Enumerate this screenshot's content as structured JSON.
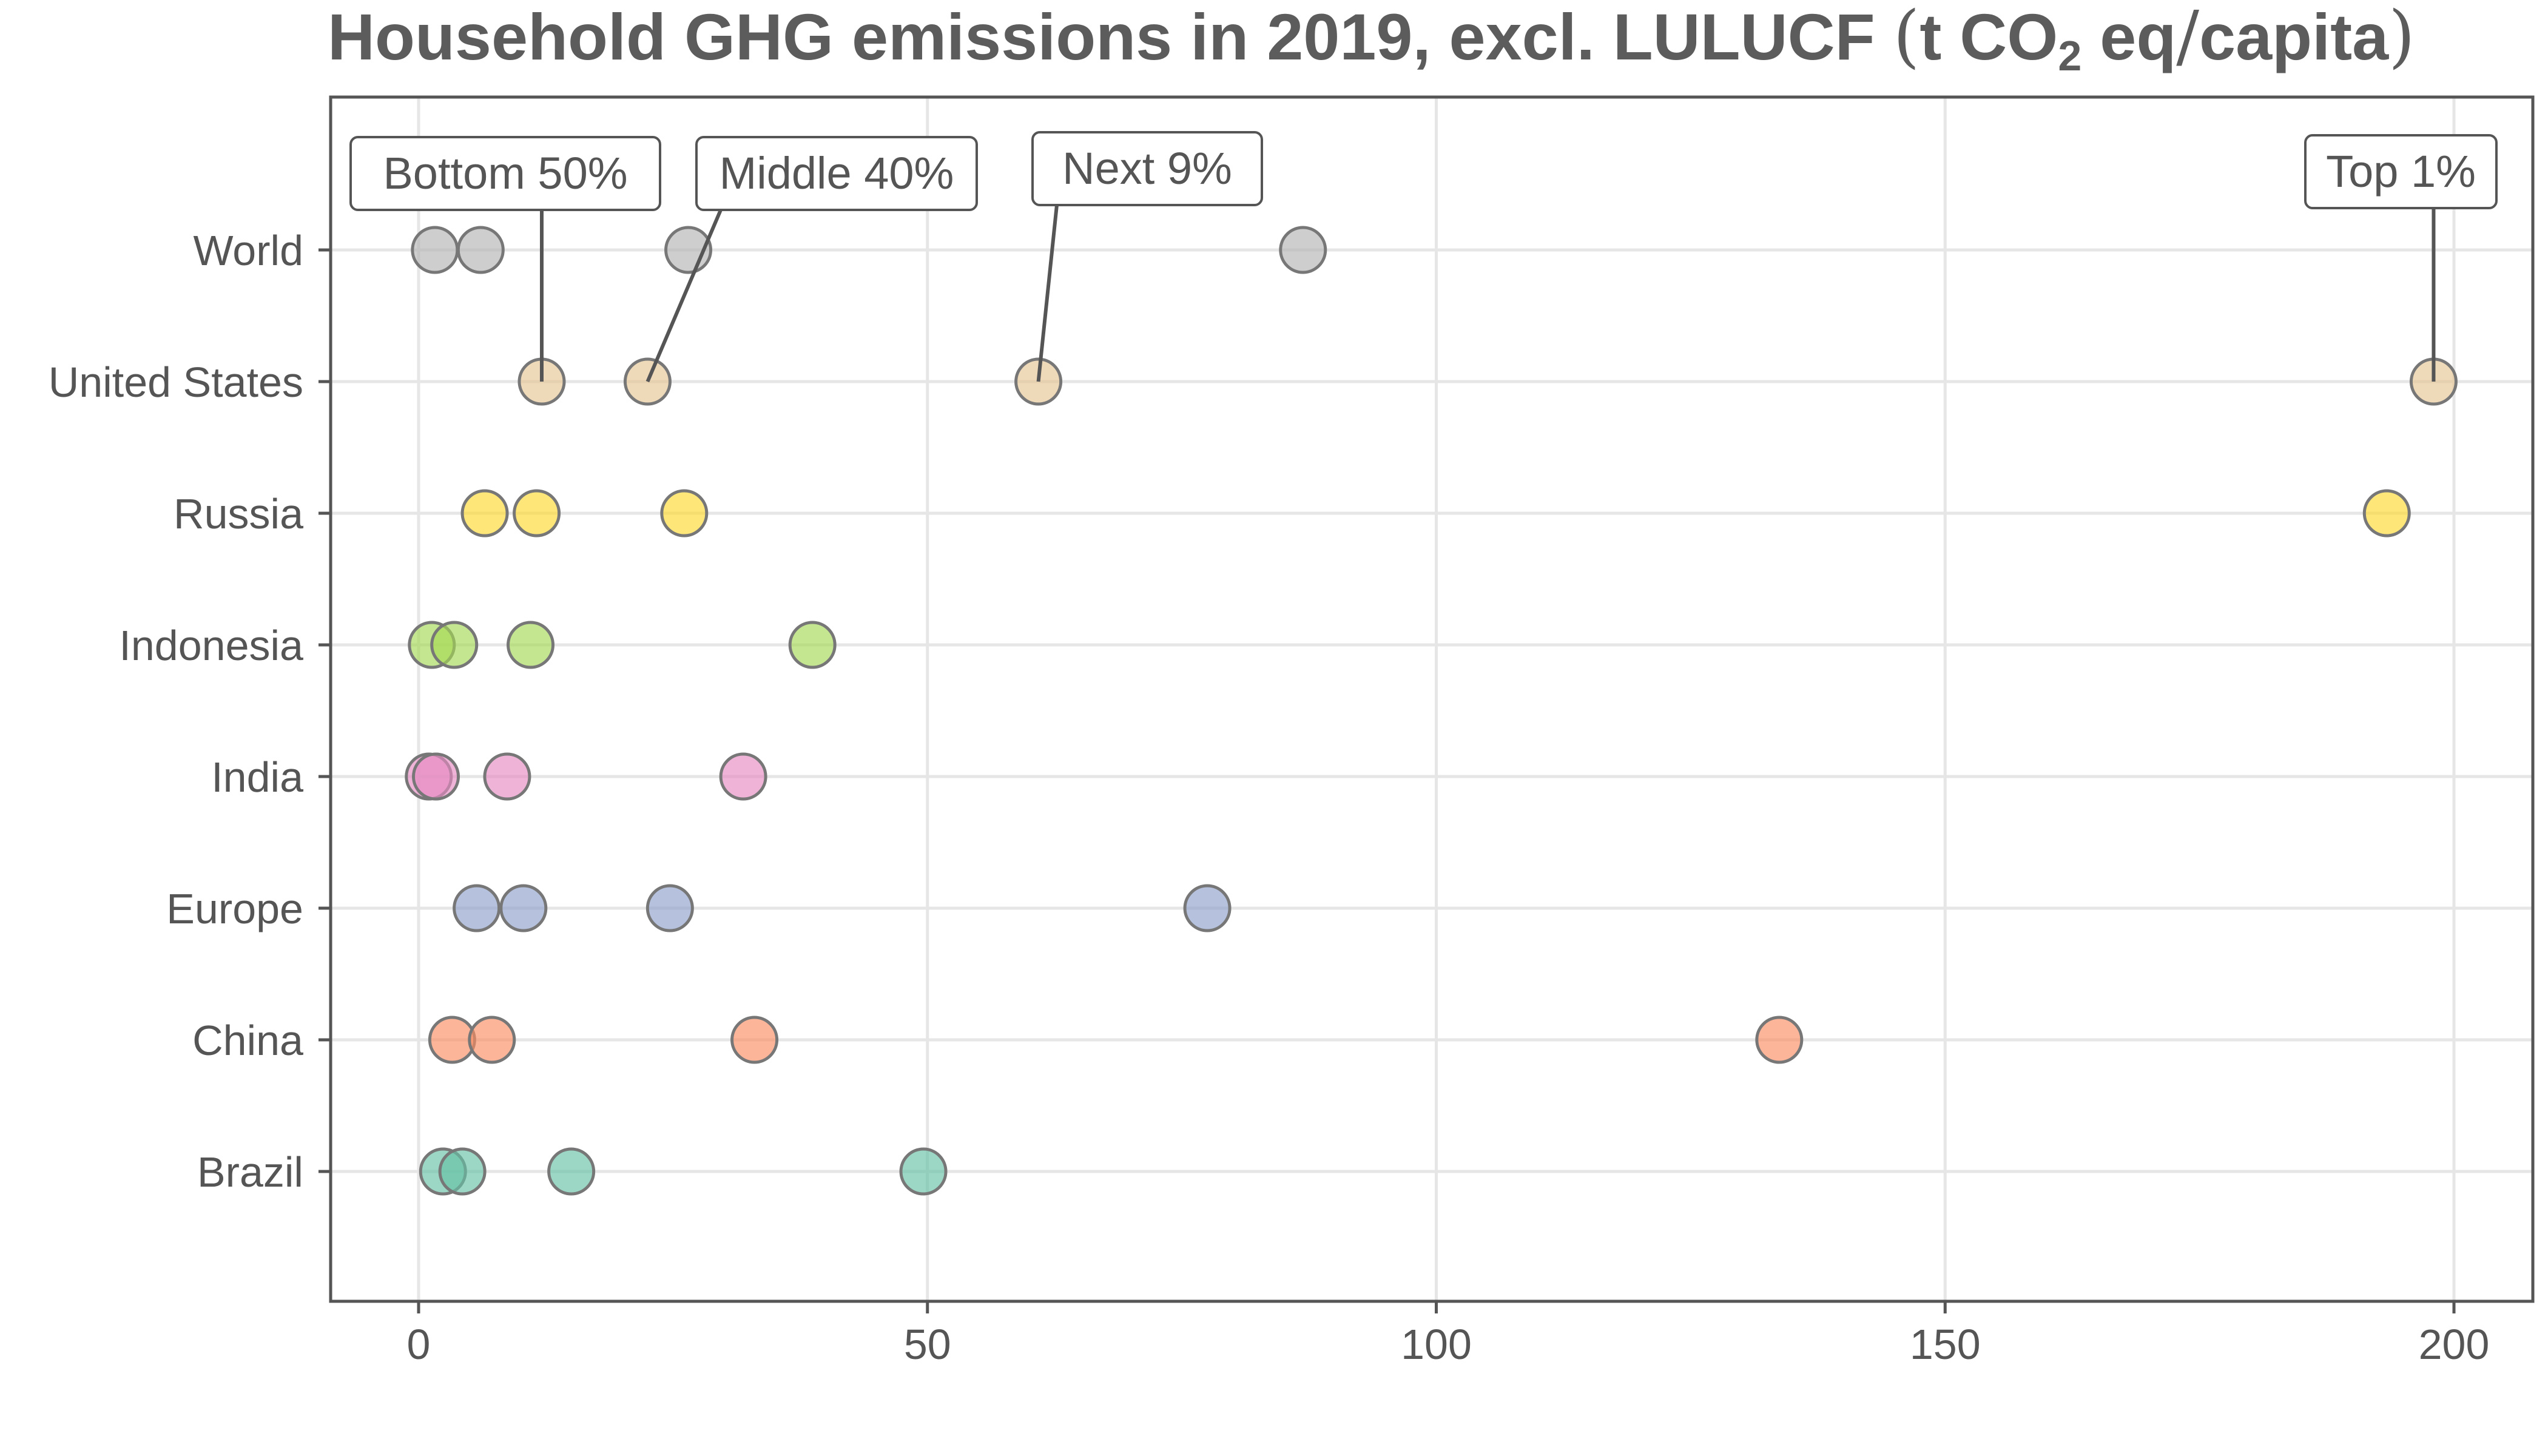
{
  "chart_data": {
    "type": "scatter",
    "title_parts": {
      "main": "Household GHG emissions in 2019, excl. LULUCF",
      "open_paren": "(",
      "unit_pre": "t CO",
      "unit_sub": "2",
      "unit_mid": " eq",
      "slash": "/",
      "unit_post": "capita",
      "close_paren": ")"
    },
    "xlim": [
      -9,
      209
    ],
    "x_ticks": [
      0,
      50,
      100,
      150,
      200
    ],
    "categories": [
      "World",
      "United States",
      "Russia",
      "Indonesia",
      "India",
      "Europe",
      "China",
      "Brazil"
    ],
    "groups": [
      "Bottom 50%",
      "Middle 40%",
      "Next 9%",
      "Top 1%"
    ],
    "grid": true,
    "colors": {
      "World": "#b3b3b3",
      "United States": "#e5c494",
      "Russia": "#ffd92f",
      "Indonesia": "#a6d854",
      "India": "#e78ac3",
      "Europe": "#8da0cb",
      "China": "#fc8d62",
      "Brazil": "#66c2a5"
    },
    "series": [
      {
        "category": "World",
        "values": [
          1.6,
          6.1,
          26.5,
          86.9
        ]
      },
      {
        "category": "United States",
        "values": [
          12.1,
          22.5,
          60.9,
          198.0
        ]
      },
      {
        "category": "Russia",
        "values": [
          6.5,
          11.6,
          26.1,
          193.4
        ]
      },
      {
        "category": "Indonesia",
        "values": [
          1.3,
          3.5,
          11.0,
          38.7
        ]
      },
      {
        "category": "India",
        "values": [
          1.0,
          1.7,
          8.7,
          31.9
        ]
      },
      {
        "category": "Europe",
        "values": [
          5.7,
          10.3,
          24.7,
          77.5
        ]
      },
      {
        "category": "China",
        "values": [
          3.3,
          7.2,
          33.0,
          133.7
        ]
      },
      {
        "category": "Brazil",
        "values": [
          2.4,
          4.3,
          15.0,
          49.6
        ]
      }
    ],
    "annotations": [
      {
        "label": "Bottom 50%",
        "category": "United States",
        "x": 12.1
      },
      {
        "label": "Middle 40%",
        "category": "United States",
        "x": 22.5
      },
      {
        "label": "Next 9%",
        "category": "United States",
        "x": 60.9
      },
      {
        "label": "Top 1%",
        "category": "United States",
        "x": 198.0
      }
    ]
  }
}
